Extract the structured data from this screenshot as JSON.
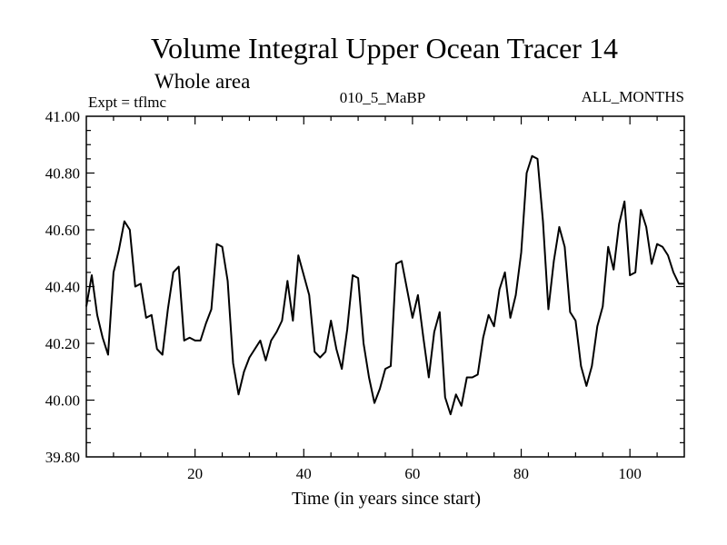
{
  "chart_data": {
    "type": "line",
    "title": "Volume Integral Upper Ocean Tracer 14",
    "subtitle": "Whole area",
    "header_left": "Expt = tflmc",
    "header_center": "010_5_MaBP",
    "header_right": "ALL_MONTHS",
    "xlabel": "Time (in years since start)",
    "ylabel": "",
    "xlim": [
      0,
      110
    ],
    "ylim": [
      39.8,
      41.0
    ],
    "xticks_major": [
      20,
      40,
      60,
      80,
      100
    ],
    "xtick_labels": [
      "20",
      "40",
      "60",
      "80",
      "100"
    ],
    "xticks_minor_step": 5,
    "yticks_major": [
      39.8,
      40.0,
      40.2,
      40.4,
      40.6,
      40.8,
      41.0
    ],
    "ytick_labels": [
      "39.80",
      "40.00",
      "40.20",
      "40.40",
      "40.60",
      "40.80",
      "41.00"
    ],
    "yticks_minor_step": 0.05,
    "grid": false,
    "series": [
      {
        "name": "Volume Integral Upper Ocean Tracer 14",
        "color": "#000000",
        "x": [
          0,
          1,
          2,
          3,
          4,
          5,
          6,
          7,
          8,
          9,
          10,
          11,
          12,
          13,
          14,
          15,
          16,
          17,
          18,
          19,
          20,
          21,
          22,
          23,
          24,
          25,
          26,
          27,
          28,
          29,
          30,
          31,
          32,
          33,
          34,
          35,
          36,
          37,
          38,
          39,
          40,
          41,
          42,
          43,
          44,
          45,
          46,
          47,
          48,
          49,
          50,
          51,
          52,
          53,
          54,
          55,
          56,
          57,
          58,
          59,
          60,
          61,
          62,
          63,
          64,
          65,
          66,
          67,
          68,
          69,
          70,
          71,
          72,
          73,
          74,
          75,
          76,
          77,
          78,
          79,
          80,
          81,
          82,
          83,
          84,
          85,
          86,
          87,
          88,
          89,
          90,
          91,
          92,
          93,
          94,
          95,
          96,
          97,
          98,
          99,
          100,
          101,
          102,
          103,
          104,
          105,
          106,
          107,
          108,
          109,
          110
        ],
        "values": [
          40.33,
          40.44,
          40.3,
          40.22,
          40.16,
          40.45,
          40.53,
          40.63,
          40.6,
          40.4,
          40.41,
          40.29,
          40.3,
          40.18,
          40.16,
          40.32,
          40.45,
          40.47,
          40.21,
          40.22,
          40.21,
          40.21,
          40.27,
          40.32,
          40.55,
          40.54,
          40.42,
          40.13,
          40.02,
          40.1,
          40.15,
          40.18,
          40.21,
          40.14,
          40.21,
          40.24,
          40.28,
          40.42,
          40.28,
          40.51,
          40.44,
          40.37,
          40.17,
          40.15,
          40.17,
          40.28,
          40.18,
          40.11,
          40.25,
          40.44,
          40.43,
          40.2,
          40.08,
          39.99,
          40.04,
          40.11,
          40.12,
          40.48,
          40.49,
          40.39,
          40.29,
          40.37,
          40.22,
          40.08,
          40.24,
          40.31,
          40.01,
          39.95,
          40.02,
          39.98,
          40.08,
          40.08,
          40.09,
          40.22,
          40.3,
          40.26,
          40.39,
          40.45,
          40.29,
          40.37,
          40.52,
          40.8,
          40.86,
          40.85,
          40.63,
          40.32,
          40.49,
          40.61,
          40.54,
          40.31,
          40.28,
          40.12,
          40.05,
          40.12,
          40.26,
          40.33,
          40.54,
          40.46,
          40.62,
          40.7,
          40.44,
          40.45,
          40.67,
          40.61,
          40.48,
          40.55,
          40.54,
          40.51,
          40.45,
          40.41,
          40.41
        ]
      }
    ]
  }
}
